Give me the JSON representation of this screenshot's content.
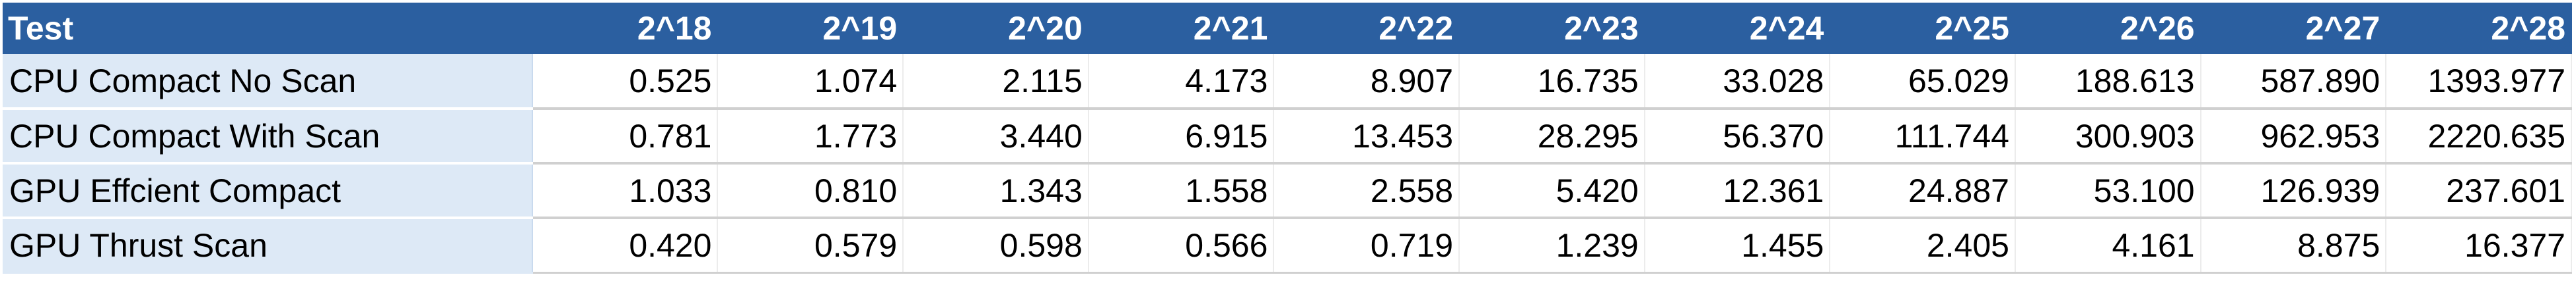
{
  "table": {
    "headers": [
      "Test",
      "2^18",
      "2^19",
      "2^20",
      "2^21",
      "2^22",
      "2^23",
      "2^24",
      "2^25",
      "2^26",
      "2^27",
      "2^28"
    ],
    "rows": [
      [
        "CPU Compact No Scan",
        "0.525",
        "1.074",
        "2.115",
        "4.173",
        "8.907",
        "16.735",
        "33.028",
        "65.029",
        "188.613",
        "587.890",
        "1393.977"
      ],
      [
        "CPU Compact With Scan",
        "0.781",
        "1.773",
        "3.440",
        "6.915",
        "13.453",
        "28.295",
        "56.370",
        "111.744",
        "300.903",
        "962.953",
        "2220.635"
      ],
      [
        "GPU Effcient Compact",
        "1.033",
        "0.810",
        "1.343",
        "1.558",
        "2.558",
        "5.420",
        "12.361",
        "24.887",
        "53.100",
        "126.939",
        "237.601"
      ],
      [
        "GPU Thrust Scan",
        "0.420",
        "0.579",
        "0.598",
        "0.566",
        "0.719",
        "1.239",
        "1.455",
        "2.405",
        "4.161",
        "8.875",
        "16.377"
      ]
    ]
  },
  "colors": {
    "header_bg": "#2b5fa0",
    "header_text": "#ffffff",
    "name_cell_bg": "#dde9f6"
  }
}
